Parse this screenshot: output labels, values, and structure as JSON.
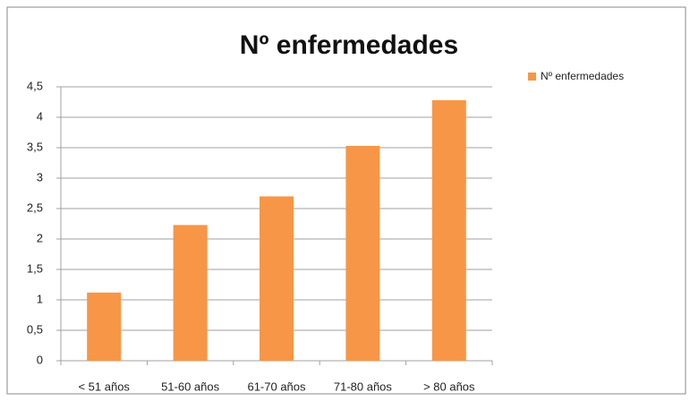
{
  "chart_data": {
    "type": "bar",
    "title": "Nº enfermedades",
    "categories": [
      "< 51 años",
      "51-60 años",
      "61-70 años",
      "71-80 años",
      "> 80 años"
    ],
    "series": [
      {
        "name": "Nº enfermedades",
        "color": "#f79646",
        "values": [
          1.12,
          2.23,
          2.7,
          3.53,
          4.28
        ]
      }
    ],
    "ylim": [
      0,
      4.5
    ],
    "yticks": [
      0,
      {
        "value": 0.5,
        "label": "0,5"
      },
      1,
      {
        "value": 1.5,
        "label": "1,5"
      },
      2,
      {
        "value": 2.5,
        "label": "2,5"
      },
      3,
      {
        "value": 3.5,
        "label": "3,5"
      },
      4,
      {
        "value": 4.5,
        "label": "4,5"
      }
    ],
    "grid": true,
    "legend": "right"
  }
}
